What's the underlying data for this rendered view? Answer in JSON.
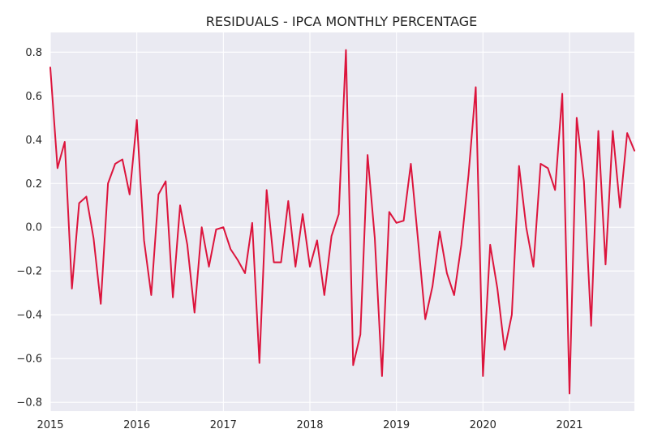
{
  "chart_data": {
    "type": "line",
    "title": "RESIDUALS - IPCA MONTHLY PERCENTAGE",
    "xlabel": "",
    "ylabel": "",
    "x_ticks": [
      "2015",
      "2016",
      "2017",
      "2018",
      "2019",
      "2020",
      "2021"
    ],
    "y_ticks": [
      "0.8",
      "0.6",
      "0.4",
      "0.2",
      "0.0",
      "−0.2",
      "−0.4",
      "−0.6",
      "−0.8"
    ],
    "xlim": [
      "2015-01",
      "2021-10"
    ],
    "ylim": [
      -0.84,
      0.89
    ],
    "grid": true,
    "background": "#eaeaf2",
    "line_color": "#dc143c",
    "series": [
      {
        "x": [
          "2015-01",
          "2015-02",
          "2015-03",
          "2015-04",
          "2015-05",
          "2015-06",
          "2015-07",
          "2015-08",
          "2015-09",
          "2015-10",
          "2015-11",
          "2015-12",
          "2016-01",
          "2016-02",
          "2016-03",
          "2016-04",
          "2016-05",
          "2016-06",
          "2016-07",
          "2016-08",
          "2016-09",
          "2016-10",
          "2016-11",
          "2016-12",
          "2017-01",
          "2017-02",
          "2017-03",
          "2017-04",
          "2017-05",
          "2017-06",
          "2017-07",
          "2017-08",
          "2017-09",
          "2017-10",
          "2017-11",
          "2017-12",
          "2018-01",
          "2018-02",
          "2018-03",
          "2018-04",
          "2018-05",
          "2018-06",
          "2018-07",
          "2018-08",
          "2018-09",
          "2018-10",
          "2018-11",
          "2018-12",
          "2019-01",
          "2019-02",
          "2019-03",
          "2019-04",
          "2019-05",
          "2019-06",
          "2019-07",
          "2019-08",
          "2019-09",
          "2019-10",
          "2019-11",
          "2019-12",
          "2020-01",
          "2020-02",
          "2020-03",
          "2020-04",
          "2020-05",
          "2020-06",
          "2020-07",
          "2020-08",
          "2020-09",
          "2020-10",
          "2020-11",
          "2020-12",
          "2021-01",
          "2021-02",
          "2021-03",
          "2021-04",
          "2021-05",
          "2021-06",
          "2021-07",
          "2021-08",
          "2021-09",
          "2021-10"
        ],
        "values": [
          0.73,
          0.27,
          0.39,
          -0.28,
          0.11,
          0.14,
          -0.05,
          -0.35,
          0.2,
          0.29,
          0.31,
          0.15,
          0.49,
          -0.06,
          -0.31,
          0.15,
          0.21,
          -0.32,
          0.1,
          -0.08,
          -0.39,
          0.0,
          -0.18,
          -0.01,
          0.0,
          -0.1,
          -0.15,
          -0.21,
          0.02,
          -0.62,
          0.17,
          -0.16,
          -0.16,
          0.12,
          -0.18,
          0.06,
          -0.18,
          -0.06,
          -0.31,
          -0.04,
          0.06,
          0.81,
          -0.63,
          -0.49,
          0.33,
          -0.05,
          -0.68,
          0.07,
          0.02,
          0.03,
          0.29,
          -0.06,
          -0.42,
          -0.27,
          -0.02,
          -0.21,
          -0.31,
          -0.08,
          0.24,
          0.64,
          -0.68,
          -0.08,
          -0.28,
          -0.56,
          -0.4,
          0.28,
          0.0,
          -0.18,
          0.29,
          0.27,
          0.17,
          0.61,
          -0.76,
          0.5,
          0.21,
          -0.45,
          0.44,
          -0.17,
          0.44,
          0.09,
          0.43,
          0.35
        ]
      }
    ]
  }
}
